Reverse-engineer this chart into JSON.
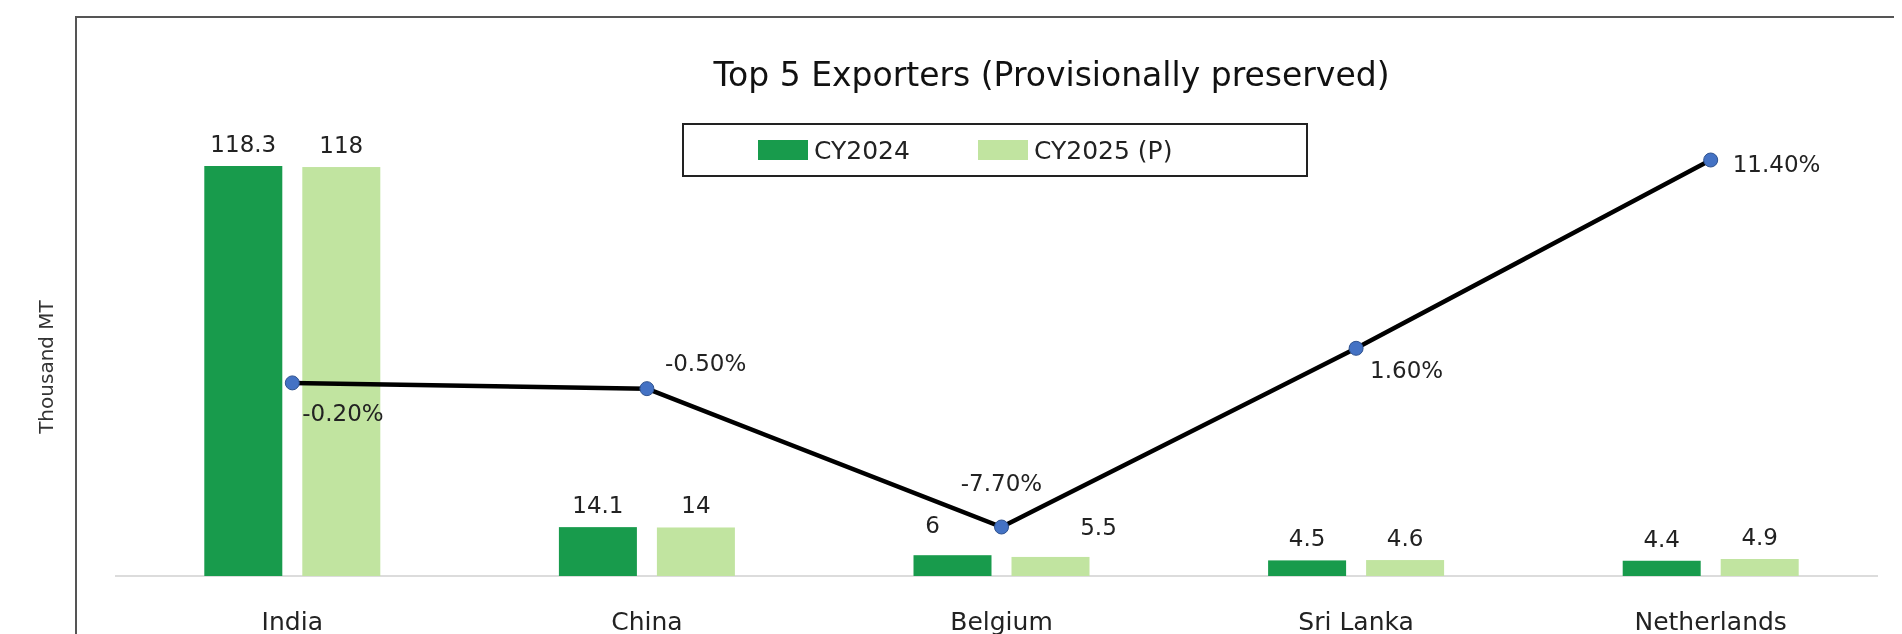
{
  "chart_data": {
    "type": "bar",
    "title": "Top 5 Exporters (Provisionally preserved)",
    "ylabel": "Thousand MT",
    "categories": [
      "India",
      "China",
      "Belgium",
      "Sri Lanka",
      "Netherlands"
    ],
    "series": [
      {
        "name": "CY2024",
        "color": "#189b4c",
        "values": [
          118.3,
          14.1,
          6,
          4.5,
          4.4
        ],
        "value_labels": [
          "118.3",
          "14.1",
          "6",
          "4.5",
          "4.4"
        ]
      },
      {
        "name": "CY2025 (P)",
        "color": "#c1e4a0",
        "values": [
          118,
          14,
          5.5,
          4.6,
          4.9
        ],
        "value_labels": [
          "118",
          "14",
          "5.5",
          "4.6",
          "4.9"
        ]
      },
      {
        "type": "line",
        "axis": "y2",
        "color": "#000000",
        "values": [
          -0.2,
          -0.5,
          -7.7,
          1.6,
          11.4
        ],
        "value_labels": [
          "-0.20%",
          "-0.50%",
          "-7.70%",
          "1.60%",
          "11.40%"
        ]
      }
    ],
    "legend": "top",
    "marker": "circle",
    "line_style": "solid"
  }
}
